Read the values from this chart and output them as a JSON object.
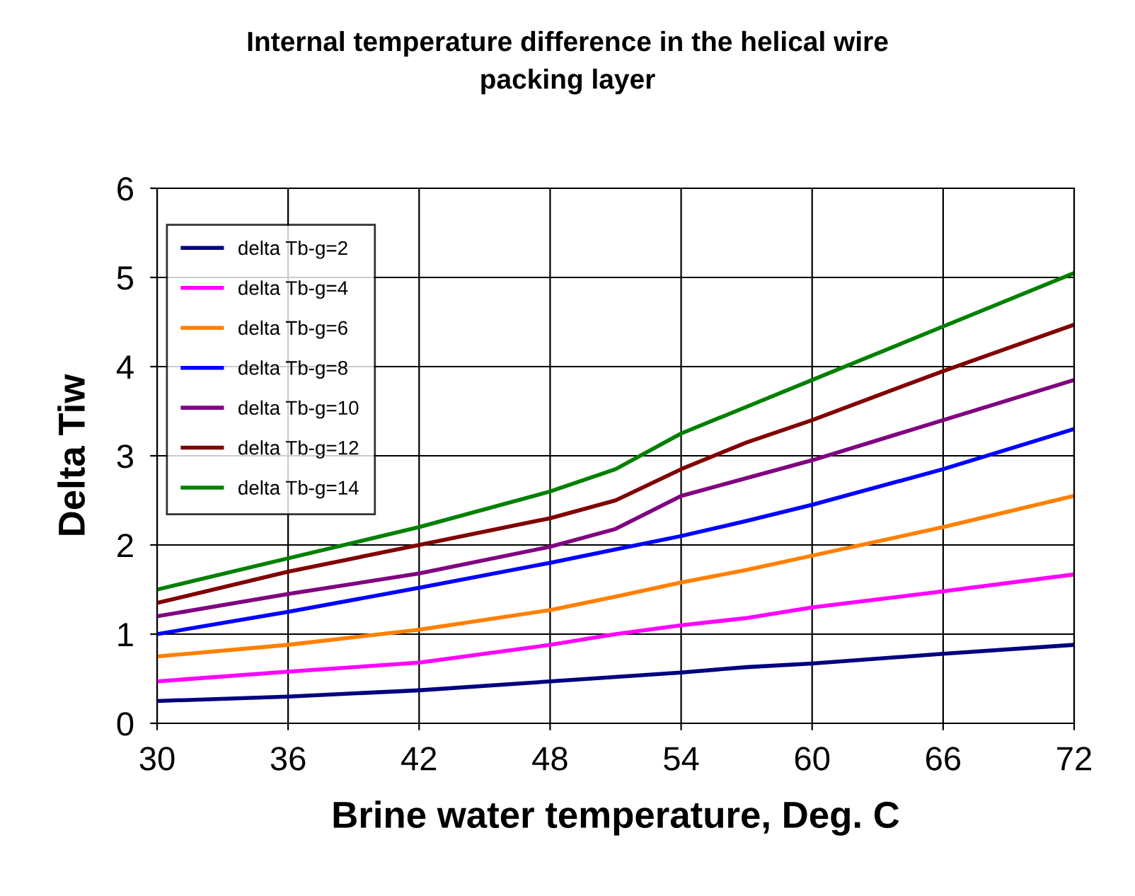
{
  "chart_data": {
    "type": "line",
    "title": "Internal temperature difference in the helical wire\npacking layer",
    "xlabel": "Brine water temperature, Deg. C",
    "ylabel": "Delta Tiw",
    "x": [
      30,
      36,
      42,
      48,
      51,
      54,
      57,
      60,
      66,
      72
    ],
    "series": [
      {
        "name": "delta Tb-g=2",
        "color": "#000080",
        "values": [
          0.25,
          0.3,
          0.37,
          0.47,
          0.52,
          0.57,
          0.63,
          0.67,
          0.78,
          0.88
        ]
      },
      {
        "name": "delta Tb-g=4",
        "color": "#ff00ff",
        "values": [
          0.47,
          0.58,
          0.68,
          0.88,
          1.0,
          1.1,
          1.18,
          1.3,
          1.48,
          1.67
        ]
      },
      {
        "name": "delta Tb-g=6",
        "color": "#ff8000",
        "values": [
          0.75,
          0.88,
          1.05,
          1.27,
          1.42,
          1.58,
          1.72,
          1.88,
          2.2,
          2.55
        ]
      },
      {
        "name": "delta Tb-g=8",
        "color": "#0000ff",
        "values": [
          1.0,
          1.25,
          1.52,
          1.8,
          1.95,
          2.1,
          2.27,
          2.45,
          2.85,
          3.3
        ]
      },
      {
        "name": "delta Tb-g=10",
        "color": "#800080",
        "values": [
          1.2,
          1.45,
          1.68,
          1.98,
          2.18,
          2.55,
          2.75,
          2.95,
          3.4,
          3.85
        ]
      },
      {
        "name": "delta Tb-g=12",
        "color": "#800000",
        "values": [
          1.35,
          1.7,
          2.0,
          2.3,
          2.5,
          2.85,
          3.15,
          3.4,
          3.95,
          4.47
        ]
      },
      {
        "name": "delta Tb-g=14",
        "color": "#008000",
        "values": [
          1.5,
          1.85,
          2.2,
          2.6,
          2.85,
          3.25,
          3.55,
          3.85,
          4.45,
          5.05
        ]
      }
    ],
    "xlim": [
      30,
      72
    ],
    "xticks": [
      30,
      36,
      42,
      48,
      54,
      60,
      66,
      72
    ],
    "ylim": [
      0,
      6
    ],
    "yticks": [
      0,
      1,
      2,
      3,
      4,
      5,
      6
    ],
    "grid": true,
    "legend": "top left",
    "marker": "none",
    "line_style": "solid"
  }
}
